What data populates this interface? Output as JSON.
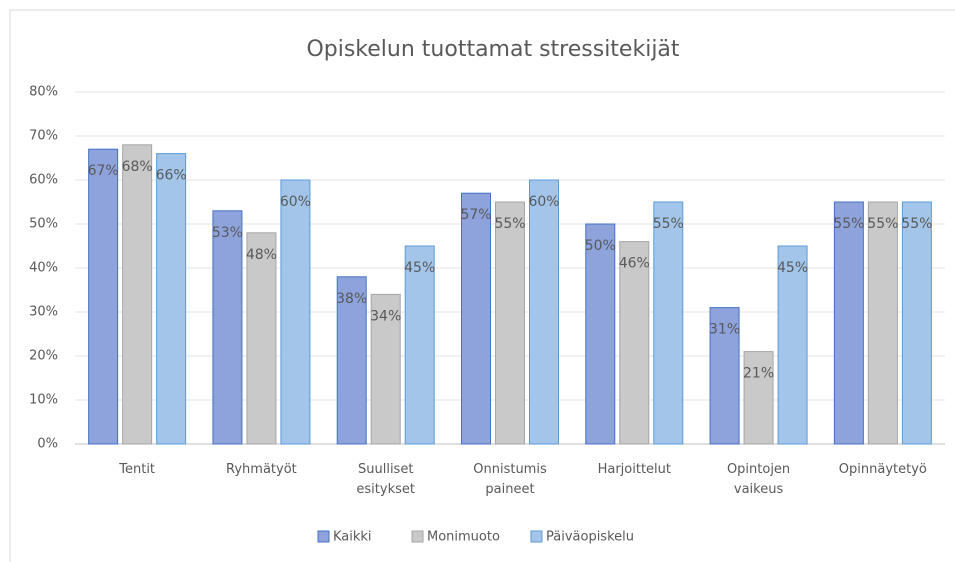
{
  "chart_data": {
    "type": "bar",
    "title": "Opiskelun tuottamat stressitekijät",
    "categories": [
      "Tentit",
      "Ryhmätyöt",
      "Suulliset\nesitykset",
      "Onnistumis\npaineet",
      "Harjoittelut",
      "Opintojen\nvaikeus",
      "Opinnäytetyö"
    ],
    "series": [
      {
        "name": "Kaikki",
        "color": "#8ea3dc",
        "values": [
          67,
          53,
          38,
          57,
          50,
          31,
          55
        ],
        "value_labels": [
          "67%",
          "53%",
          "38%",
          "57%",
          "50%",
          "31%",
          "55%"
        ]
      },
      {
        "name": "Monimuoto",
        "color": "#c9c9c9",
        "values": [
          68,
          48,
          34,
          55,
          46,
          21,
          55
        ],
        "value_labels": [
          "68%",
          "48%",
          "34%",
          "55%",
          "46%",
          "21%",
          "55%"
        ]
      },
      {
        "name": "Päiväopiskelu",
        "color": "#a3c5e9",
        "values": [
          66,
          60,
          45,
          60,
          55,
          45,
          55
        ],
        "value_labels": [
          "66%",
          "60%",
          "45%",
          "60%",
          "55%",
          "45%",
          "55%"
        ]
      }
    ],
    "ylim": [
      0,
      80
    ],
    "yticks": [
      {
        "value": 0,
        "label": "0%"
      },
      {
        "value": 10,
        "label": "10%"
      },
      {
        "value": 20,
        "label": "20%"
      },
      {
        "value": 30,
        "label": "30%"
      },
      {
        "value": 40,
        "label": "40%"
      },
      {
        "value": 50,
        "label": "50%"
      },
      {
        "value": 60,
        "label": "60%"
      },
      {
        "value": 70,
        "label": "70%"
      },
      {
        "value": 80,
        "label": "80%"
      }
    ],
    "grid": true,
    "legend": "bottom"
  }
}
